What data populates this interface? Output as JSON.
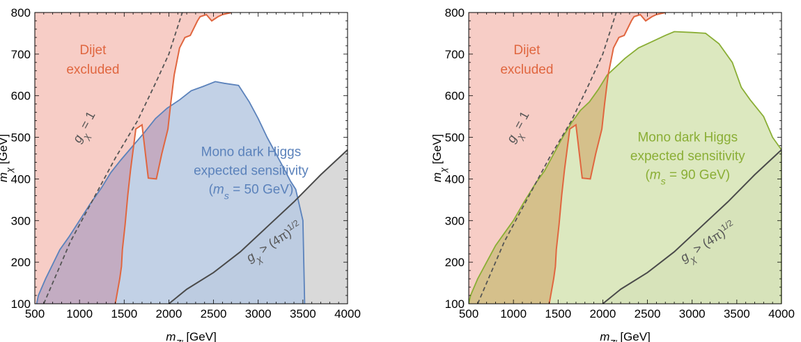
{
  "chart_data": [
    {
      "type": "area",
      "xlabel": "m_Z' [GeV]",
      "ylabel": "m_χ [GeV]",
      "xlim": [
        500,
        4000
      ],
      "ylim": [
        100,
        800
      ],
      "xticks": [
        500,
        1000,
        1500,
        2000,
        2500,
        3000,
        3500,
        4000
      ],
      "yticks": [
        100,
        200,
        300,
        400,
        500,
        600,
        700,
        800
      ],
      "grid": false,
      "annotations": {
        "dijet": [
          "Dijet",
          "excluded"
        ],
        "monoh": [
          "Mono dark Higgs",
          "expected sensitivity",
          "(m_s = 50 GeV)"
        ],
        "gchi": "g_χ = 1",
        "pert": "g_χ > (4π)^1/2"
      },
      "colors": {
        "dijet_fill": "#f7cdc6",
        "dijet_line": "#e0663f",
        "sens_fill": "#b7c9e2",
        "sens_line": "#5b82bb",
        "sens_text": "#5b82bb",
        "pert_fill": "#d9d9d9",
        "pert_line": "#4a4a4a"
      },
      "series": [
        {
          "role": "dijet_left_boundary",
          "points": [
            [
              400,
              100
            ],
            [
              700,
              205
            ],
            [
              1000,
              320
            ],
            [
              1300,
              420
            ],
            [
              1560,
              510
            ],
            [
              1800,
              600
            ],
            [
              2000,
              680
            ],
            [
              2200,
              760
            ],
            [
              2350,
              800
            ]
          ]
        },
        {
          "role": "dijet_exclusion_contour",
          "points": [
            [
              1400,
              100
            ],
            [
              1450,
              160
            ],
            [
              1470,
              190
            ],
            [
              1480,
              230
            ],
            [
              1510,
              290
            ],
            [
              1540,
              360
            ],
            [
              1570,
              420
            ],
            [
              1630,
              520
            ],
            [
              1700,
              530
            ],
            [
              1770,
              402
            ],
            [
              1860,
              400
            ],
            [
              1920,
              460
            ],
            [
              1990,
              520
            ],
            [
              2020,
              580
            ],
            [
              2060,
              650
            ],
            [
              2120,
              715
            ],
            [
              2180,
              740
            ],
            [
              2240,
              745
            ],
            [
              2320,
              780
            ],
            [
              2350,
              790
            ],
            [
              2420,
              795
            ],
            [
              2480,
              780
            ],
            [
              2550,
              790
            ],
            [
              2600,
              795
            ],
            [
              2700,
              800
            ]
          ]
        },
        {
          "role": "mono_dark_higgs_sensitivity",
          "points": [
            [
              520,
              100
            ],
            [
              540,
              120
            ],
            [
              620,
              160
            ],
            [
              700,
              195
            ],
            [
              780,
              230
            ],
            [
              880,
              260
            ],
            [
              1000,
              300
            ],
            [
              1120,
              340
            ],
            [
              1250,
              380
            ],
            [
              1350,
              415
            ],
            [
              1460,
              445
            ],
            [
              1600,
              480
            ],
            [
              1720,
              510
            ],
            [
              1850,
              545
            ],
            [
              1980,
              570
            ],
            [
              2120,
              590
            ],
            [
              2250,
              612
            ],
            [
              2380,
              622
            ],
            [
              2520,
              634
            ],
            [
              2620,
              630
            ],
            [
              2780,
              625
            ],
            [
              2900,
              585
            ],
            [
              3000,
              545
            ],
            [
              3100,
              500
            ],
            [
              3200,
              460
            ],
            [
              3300,
              420
            ],
            [
              3360,
              395
            ],
            [
              3420,
              375
            ],
            [
              3500,
              300
            ],
            [
              3520,
              100
            ]
          ]
        },
        {
          "role": "g_chi_equals_1",
          "points": [
            [
              600,
              100
            ],
            [
              900,
              250
            ],
            [
              1200,
              370
            ],
            [
              1400,
              450
            ],
            [
              1650,
              540
            ],
            [
              1850,
              630
            ],
            [
              2000,
              700
            ],
            [
              2150,
              800
            ]
          ]
        },
        {
          "role": "perturbativity_boundary",
          "points": [
            [
              2000,
              100
            ],
            [
              2200,
              135
            ],
            [
              2500,
              175
            ],
            [
              2800,
              225
            ],
            [
              3100,
              285
            ],
            [
              3400,
              345
            ],
            [
              3700,
              410
            ],
            [
              4000,
              470
            ]
          ]
        }
      ]
    },
    {
      "type": "area",
      "xlabel": "m_Z' [GeV]",
      "ylabel": "m_χ [GeV]",
      "xlim": [
        500,
        4000
      ],
      "ylim": [
        100,
        800
      ],
      "xticks": [
        500,
        1000,
        1500,
        2000,
        2500,
        3000,
        3500,
        4000
      ],
      "yticks": [
        100,
        200,
        300,
        400,
        500,
        600,
        700,
        800
      ],
      "grid": false,
      "annotations": {
        "dijet": [
          "Dijet",
          "excluded"
        ],
        "monoh": [
          "Mono dark Higgs",
          "expected sensitivity",
          "(m_s = 90 GeV)"
        ],
        "gchi": "g_χ = 1",
        "pert": "g_χ > (4π)^1/2"
      },
      "colors": {
        "dijet_fill": "#f7cdc6",
        "dijet_line": "#e0663f",
        "sens_fill": "#d6e4b4",
        "sens_line": "#8aae35",
        "sens_text": "#8aae35",
        "pert_fill": "#d9d9d9",
        "pert_line": "#4a4a4a"
      },
      "series": [
        {
          "role": "dijet_left_boundary",
          "points": [
            [
              400,
              100
            ],
            [
              700,
              205
            ],
            [
              1000,
              320
            ],
            [
              1300,
              420
            ],
            [
              1560,
              510
            ],
            [
              1800,
              600
            ],
            [
              2000,
              680
            ],
            [
              2200,
              760
            ],
            [
              2350,
              800
            ]
          ]
        },
        {
          "role": "dijet_exclusion_contour",
          "points": [
            [
              1400,
              100
            ],
            [
              1450,
              160
            ],
            [
              1470,
              190
            ],
            [
              1480,
              230
            ],
            [
              1510,
              290
            ],
            [
              1540,
              360
            ],
            [
              1570,
              420
            ],
            [
              1630,
              520
            ],
            [
              1700,
              530
            ],
            [
              1770,
              402
            ],
            [
              1860,
              400
            ],
            [
              1920,
              460
            ],
            [
              1990,
              520
            ],
            [
              2020,
              580
            ],
            [
              2060,
              650
            ],
            [
              2120,
              715
            ],
            [
              2180,
              740
            ],
            [
              2240,
              745
            ],
            [
              2320,
              780
            ],
            [
              2350,
              790
            ],
            [
              2420,
              795
            ],
            [
              2480,
              780
            ],
            [
              2550,
              790
            ],
            [
              2600,
              795
            ],
            [
              2700,
              800
            ]
          ]
        },
        {
          "role": "mono_dark_higgs_sensitivity",
          "points": [
            [
              500,
              100
            ],
            [
              520,
              120
            ],
            [
              600,
              160
            ],
            [
              700,
              200
            ],
            [
              800,
              240
            ],
            [
              900,
              270
            ],
            [
              1000,
              300
            ],
            [
              1120,
              345
            ],
            [
              1250,
              390
            ],
            [
              1350,
              420
            ],
            [
              1450,
              460
            ],
            [
              1550,
              500
            ],
            [
              1650,
              535
            ],
            [
              1750,
              565
            ],
            [
              1850,
              585
            ],
            [
              1950,
              615
            ],
            [
              2050,
              650
            ],
            [
              2150,
              670
            ],
            [
              2250,
              690
            ],
            [
              2400,
              715
            ],
            [
              2550,
              730
            ],
            [
              2700,
              745
            ],
            [
              2800,
              754
            ],
            [
              3000,
              752
            ],
            [
              3150,
              750
            ],
            [
              3300,
              725
            ],
            [
              3450,
              680
            ],
            [
              3550,
              620
            ],
            [
              3650,
              590
            ],
            [
              3800,
              550
            ],
            [
              3900,
              500
            ],
            [
              4000,
              470
            ],
            [
              4000,
              100
            ]
          ]
        },
        {
          "role": "g_chi_equals_1",
          "points": [
            [
              600,
              100
            ],
            [
              900,
              250
            ],
            [
              1200,
              370
            ],
            [
              1400,
              450
            ],
            [
              1650,
              540
            ],
            [
              1850,
              630
            ],
            [
              2000,
              700
            ],
            [
              2150,
              800
            ]
          ]
        },
        {
          "role": "perturbativity_boundary",
          "points": [
            [
              2000,
              100
            ],
            [
              2200,
              135
            ],
            [
              2500,
              175
            ],
            [
              2800,
              225
            ],
            [
              3100,
              285
            ],
            [
              3400,
              345
            ],
            [
              3700,
              410
            ],
            [
              4000,
              470
            ]
          ]
        }
      ]
    }
  ]
}
